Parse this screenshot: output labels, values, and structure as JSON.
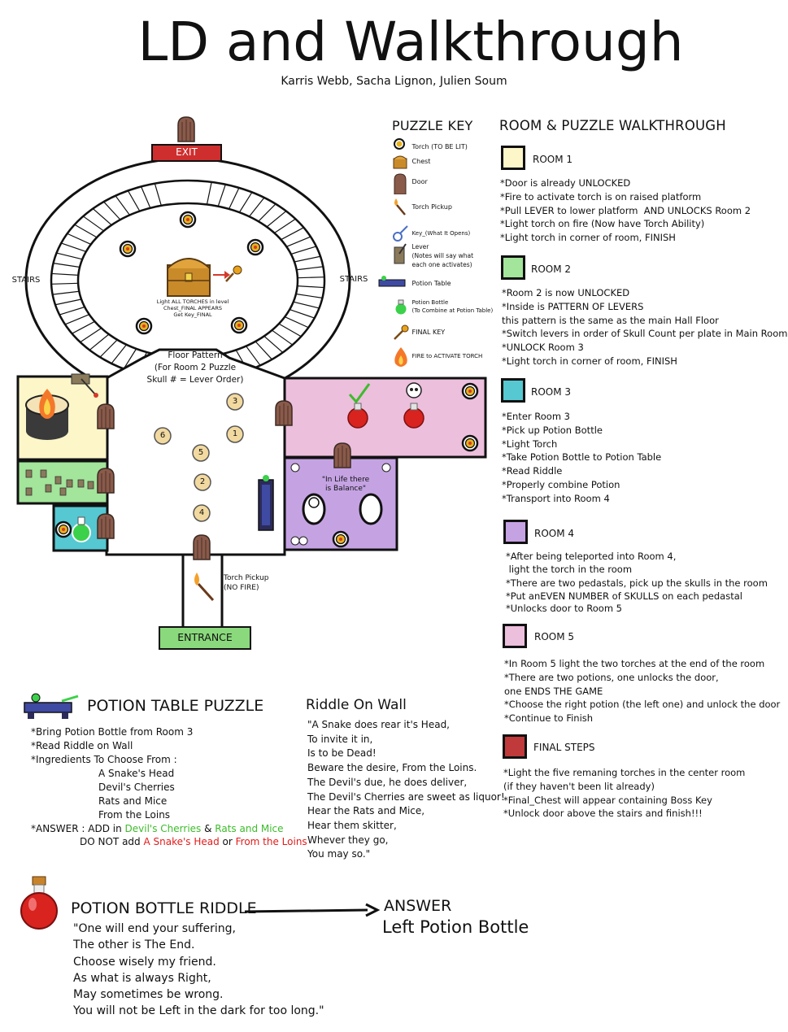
{
  "header": {
    "title": "LD and Walkthrough",
    "authors": "Karris Webb, Sacha Lignon, Julien Soum"
  },
  "map": {
    "exit_label": "EXIT",
    "entrance_label": "ENTRANCE",
    "stairs_left": "STAIRS",
    "stairs_right": "STAIRS",
    "chest_note": [
      "Light ALL TORCHES in level",
      "Chest_FINAL APPEARS",
      "Get Key_FINAL"
    ],
    "floor_pattern": [
      "Floor Pattern",
      "(For Room 2 Puzzle",
      "Skull # = Lever Order)"
    ],
    "plates": [
      "3",
      "1",
      "6",
      "5",
      "2",
      "4"
    ],
    "wall_riddle_short": [
      "\"In Life there",
      "is Balance\""
    ],
    "torch_pickup": [
      "Torch Pickup",
      "(NO FIRE)"
    ],
    "colors": {
      "room1": "#fdf6c9",
      "room2": "#a3e59b",
      "room3": "#55c8d2",
      "room4": "#c5a3e3",
      "room5": "#ecbfdc",
      "final": "#c0393b",
      "exit": "#cf2e2e",
      "entrance": "#8ad97c",
      "door": "#8a5a4a"
    }
  },
  "puzzle_key": {
    "title": "PUZZLE KEY",
    "items": [
      {
        "icon": "torch-unlit-icon",
        "label": "Torch (TO BE LIT)"
      },
      {
        "icon": "chest-icon",
        "label": "Chest"
      },
      {
        "icon": "door-icon",
        "label": "Door"
      },
      {
        "icon": "torch-pickup-icon",
        "label": "Torch Pickup"
      },
      {
        "icon": "key-icon",
        "label": "Key_(What It Opens)"
      },
      {
        "icon": "lever-icon",
        "label": "Lever"
      },
      {
        "icon": "lever-icon",
        "label": "(Notes will say what"
      },
      {
        "icon": "lever-icon",
        "label": "each one activates)"
      },
      {
        "icon": "potion-table-icon",
        "label": "Potion Table"
      },
      {
        "icon": "potion-bottle-icon",
        "label": "Potion Bottle"
      },
      {
        "icon": "potion-bottle-icon",
        "label": "(To Combine at Potion Table)"
      },
      {
        "icon": "final-key-icon",
        "label": "FINAL KEY"
      },
      {
        "icon": "fire-icon",
        "label": "FIRE to ACTIVATE TORCH"
      }
    ]
  },
  "walkthrough": {
    "title": "ROOM & PUZZLE WALKTHROUGH",
    "rooms": [
      {
        "name": "ROOM 1",
        "steps": [
          "*Door is already UNLOCKED",
          "*Fire to activate torch is on raised platform",
          "*Pull LEVER to lower platform  AND UNLOCKS Room 2",
          "*Light torch on fire (Now have Torch Ability)",
          "*Light torch in corner of room, FINISH"
        ]
      },
      {
        "name": "ROOM 2",
        "steps": [
          "*Room 2 is now UNLOCKED",
          "*Inside is PATTERN OF LEVERS",
          "this pattern is the same as the main Hall Floor",
          "*Switch levers in order of Skull Count per plate in Main Room",
          "*UNLOCK Room 3",
          "*Light torch in corner of room, FINISH"
        ]
      },
      {
        "name": "ROOM 3",
        "steps": [
          "*Enter Room 3",
          "*Pick up Potion Bottle",
          "*Light Torch",
          "*Take Potion Bottle to Potion Table",
          "*Read Riddle",
          "*Properly combine Potion",
          "*Transport into Room 4"
        ]
      },
      {
        "name": "ROOM 4",
        "steps": [
          "*After being teleported into Room 4,",
          " light the torch in the room",
          "*There are two pedastals, pick up the skulls in the room",
          "*Put anEVEN NUMBER of SKULLS on each pedastal",
          "*Unlocks door to Room 5"
        ]
      },
      {
        "name": "ROOM 5",
        "steps": [
          "*In Room 5 light the two torches at the end of the room",
          "*There are two potions, one unlocks the door,",
          "one ENDS THE GAME",
          "*Choose the right potion (the left one) and unlock the door",
          "*Continue to Finish"
        ]
      },
      {
        "name": "FINAL STEPS",
        "steps": [
          "*Light the five remaning torches in the center room",
          "(if they haven't been lit already)",
          "*Final_Chest will appear containing Boss Key",
          "*Unlock door above the stairs and finish!!!"
        ]
      }
    ]
  },
  "potion_table": {
    "title": "POTION TABLE PUZZLE",
    "lines": [
      "*Bring Potion Bottle from Room 3",
      "*Read Riddle on Wall",
      "*Ingredients To Choose From :"
    ],
    "ingredients": [
      "A Snake's Head",
      "Devil's Cherries",
      "Rats and Mice",
      "From the Loins"
    ],
    "answer_prefix": "*ANSWER : ADD in ",
    "answer_add_1": "Devil's Cherries",
    "answer_amp": " & ",
    "answer_add_2": "Rats and Mice",
    "answer_not_prefix": "DO NOT add ",
    "answer_not_1": "A Snake's Head",
    "answer_or": " or ",
    "answer_not_2": "From the Loins"
  },
  "riddle_wall": {
    "title": "Riddle On Wall",
    "lines": [
      "\"A Snake does rear it's Head,",
      "To invite it in,",
      "Is to be Dead!",
      "Beware the desire, From the Loins.",
      "The Devil's due, he does deliver,",
      "The Devil's Cherries are sweet as liquor!",
      "Hear the Rats and Mice,",
      "Hear them skitter,",
      "Whever they go,",
      "You may so.\""
    ]
  },
  "bottle_riddle": {
    "title": "POTION BOTTLE RIDDLE",
    "lines": [
      "\"One will end your suffering,",
      "The other is The End.",
      "Choose wisely my friend.",
      "As what is always Right,",
      "May sometimes be wrong.",
      "You will not be Left in the dark for too long.\""
    ],
    "answer_title": "ANSWER",
    "answer_value": "Left Potion Bottle"
  }
}
